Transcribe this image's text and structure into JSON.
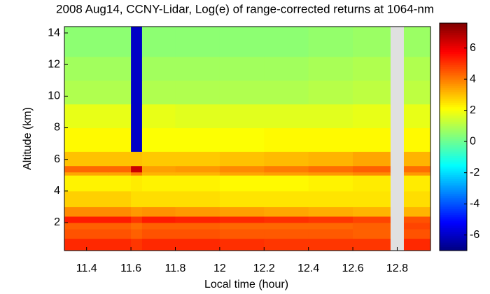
{
  "chart_data": {
    "type": "heatmap",
    "title": "2008 Aug14, CCNY-Lidar, Log(e) of range-corrected returns at 1064-nm",
    "x_label": "Local time (hour)",
    "y_label": "Altitude (km)",
    "colormap": "jet",
    "missing_color": "#e0e0e0",
    "xlim": [
      11.3,
      12.95
    ],
    "xticks": [
      11.4,
      11.6,
      11.8,
      12,
      12.2,
      12.4,
      12.6,
      12.8
    ],
    "ylim": [
      0.23,
      14.4
    ],
    "yticks": [
      2,
      4,
      6,
      8,
      10,
      12,
      14
    ],
    "zlim": [
      -7,
      7.6
    ],
    "zticks": [
      -6,
      -4,
      -2,
      0,
      2,
      4,
      6
    ],
    "x_edges": [
      11.3,
      11.5,
      11.6,
      11.65,
      11.8,
      12.0,
      12.2,
      12.4,
      12.6,
      12.77,
      12.83,
      12.95
    ],
    "y_edges": [
      0.23,
      1,
      1.6,
      2,
      2.4,
      3,
      4,
      5,
      5.2,
      5.6,
      6.5,
      8,
      9.5,
      11,
      12.5,
      14.4
    ],
    "z": [
      [
        5.2,
        5.2,
        5.0,
        5.2,
        5.2,
        5.1,
        5.0,
        5.0,
        5.0,
        null,
        5.2
      ],
      [
        4.6,
        4.6,
        4.4,
        4.6,
        4.6,
        4.5,
        4.5,
        4.5,
        4.4,
        null,
        4.6
      ],
      [
        4.4,
        4.4,
        4.2,
        4.4,
        4.4,
        4.3,
        4.3,
        4.3,
        4.4,
        null,
        4.8
      ],
      [
        5.4,
        5.4,
        5.0,
        5.4,
        5.3,
        5.2,
        5.1,
        5.0,
        4.8,
        null,
        4.6
      ],
      [
        3.8,
        3.8,
        3.6,
        3.7,
        3.6,
        3.5,
        3.4,
        3.3,
        3.2,
        null,
        3.2
      ],
      [
        2.8,
        2.8,
        2.6,
        2.6,
        2.6,
        2.5,
        2.5,
        2.5,
        2.5,
        null,
        2.6
      ],
      [
        2.3,
        2.3,
        2.4,
        2.3,
        2.3,
        2.2,
        2.2,
        2.3,
        2.4,
        null,
        2.4
      ],
      [
        3.4,
        3.4,
        4.0,
        3.2,
        3.2,
        3.4,
        3.5,
        3.6,
        3.8,
        null,
        3.6
      ],
      [
        4.3,
        4.3,
        6.5,
        3.5,
        3.6,
        3.8,
        4.0,
        4.2,
        4.4,
        null,
        4.2
      ],
      [
        3.0,
        3.0,
        3.0,
        2.9,
        2.9,
        3.0,
        3.1,
        3.2,
        3.4,
        null,
        3.2
      ],
      [
        2.2,
        2.2,
        -6,
        2.1,
        2.1,
        2.1,
        2.2,
        2.2,
        2.2,
        null,
        2.2
      ],
      [
        1.8,
        1.8,
        -6,
        1.8,
        1.7,
        1.7,
        1.7,
        1.7,
        1.8,
        null,
        1.8
      ],
      [
        1.0,
        1.0,
        -6,
        1.0,
        1.0,
        1.0,
        1.0,
        1.1,
        1.2,
        null,
        1.2
      ],
      [
        0.8,
        0.8,
        -6,
        0.8,
        0.8,
        0.8,
        0.8,
        0.9,
        1.0,
        null,
        1.0
      ],
      [
        0.5,
        0.5,
        -6,
        0.5,
        0.5,
        0.5,
        0.5,
        0.6,
        0.7,
        null,
        0.7
      ]
    ]
  }
}
